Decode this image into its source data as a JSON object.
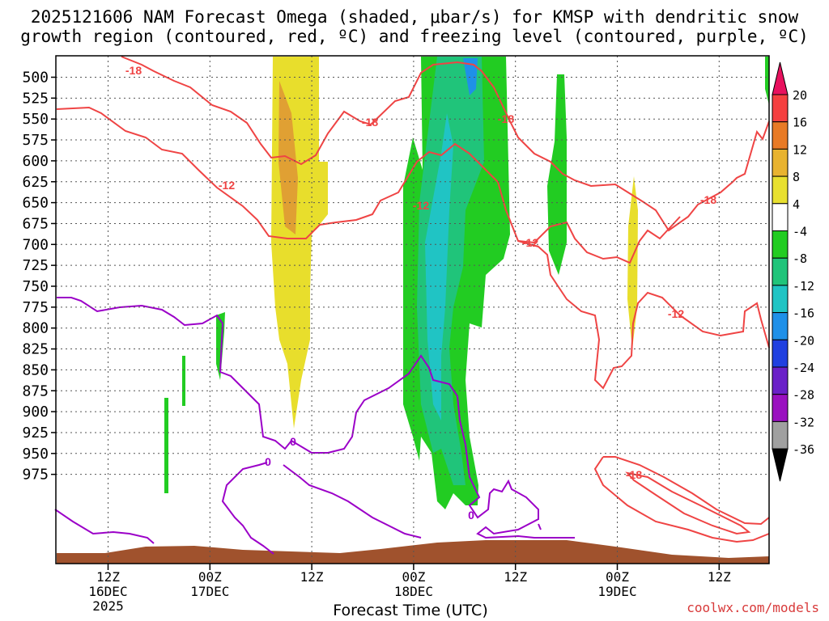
{
  "chart_data": {
    "type": "time-height cross-section",
    "title_line1": "2025121606 NAM Forecast Omega (shaded, μbar/s) for KMSP with dendritic snow",
    "title_line2": "growth region (contoured, red, ºC) and freezing level (contoured, purple, ºC)",
    "xlabel": "Forecast Time (UTC)",
    "credit": "coolwx.com/models",
    "y_levels": [
      "500",
      "525",
      "550",
      "575",
      "600",
      "625",
      "650",
      "675",
      "700",
      "725",
      "750",
      "775",
      "800",
      "825",
      "850",
      "875",
      "900",
      "925",
      "950",
      "975"
    ],
    "x_ticks": [
      {
        "l1": "12Z",
        "l2": "16DEC",
        "l3": "2025"
      },
      {
        "l1": "00Z",
        "l2": "17DEC",
        "l3": ""
      },
      {
        "l1": "12Z",
        "l2": "",
        "l3": ""
      },
      {
        "l1": "00Z",
        "l2": "18DEC",
        "l3": ""
      },
      {
        "l1": "12Z",
        "l2": "",
        "l3": ""
      },
      {
        "l1": "00Z",
        "l2": "19DEC",
        "l3": ""
      },
      {
        "l1": "12Z",
        "l2": "",
        "l3": ""
      }
    ],
    "colorbar": {
      "labels": [
        "20",
        "16",
        "12",
        "8",
        "4",
        "-4",
        "-8",
        "-12",
        "-16",
        "-20",
        "-24",
        "-28",
        "-32",
        "-36"
      ],
      "colors": [
        "#e8115e",
        "#f54040",
        "#e87a25",
        "#e8b330",
        "#e8e030",
        "#ffffff",
        "#22cc22",
        "#20c47a",
        "#20c4c4",
        "#1f90e8",
        "#2040e0",
        "#6a20c8",
        "#9a10c0",
        "#a0a0a0",
        "#000000"
      ]
    },
    "contour_labels": {
      "dendritic": [
        "-18",
        "-12",
        "-18",
        "-18",
        "-12",
        "-12",
        "-18",
        "-12",
        "-18"
      ],
      "freezing": [
        "0",
        "0",
        "0"
      ]
    },
    "colors": {
      "dendritic": "#ef4444",
      "freezing": "#9b00c8",
      "terrain": "#a0522d",
      "grid": "#666666"
    }
  }
}
